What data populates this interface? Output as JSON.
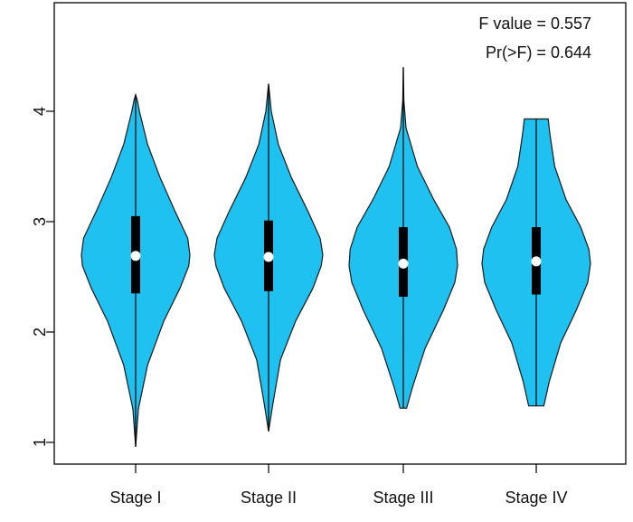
{
  "chart_data": {
    "type": "violin",
    "title": "",
    "xlabel": "",
    "ylabel": "",
    "ylim": [
      0.8,
      4.55
    ],
    "yticks": [
      1,
      2,
      3,
      4
    ],
    "categories": [
      "Stage I",
      "Stage II",
      "Stage III",
      "Stage IV"
    ],
    "annotations": [
      "F value = 0.557",
      "Pr(>F) = 0.644"
    ],
    "fill_color": "#1ec1ef",
    "grid": false,
    "violins": [
      {
        "category": "Stage I",
        "min": 0.96,
        "max": 4.15,
        "q1": 2.35,
        "median": 2.69,
        "q3": 3.05,
        "density_y": [
          0.96,
          1.3,
          1.7,
          2.1,
          2.4,
          2.6,
          2.7,
          2.85,
          3.1,
          3.4,
          3.7,
          4.0,
          4.1,
          4.15
        ],
        "density_w": [
          0.0,
          0.05,
          0.22,
          0.52,
          0.82,
          0.98,
          1.0,
          0.96,
          0.72,
          0.45,
          0.22,
          0.07,
          0.03,
          0.0
        ]
      },
      {
        "category": "Stage II",
        "min": 1.1,
        "max": 4.25,
        "q1": 2.37,
        "median": 2.68,
        "q3": 3.01,
        "density_y": [
          1.1,
          1.35,
          1.75,
          2.1,
          2.4,
          2.6,
          2.7,
          2.85,
          3.1,
          3.4,
          3.7,
          4.0,
          4.2,
          4.25
        ],
        "density_w": [
          0.0,
          0.08,
          0.22,
          0.5,
          0.82,
          0.97,
          1.0,
          0.95,
          0.72,
          0.42,
          0.18,
          0.05,
          0.01,
          0.0
        ]
      },
      {
        "category": "Stage III",
        "min": 1.31,
        "max": 4.4,
        "q1": 2.32,
        "median": 2.62,
        "q3": 2.95,
        "density_y": [
          1.31,
          1.5,
          1.85,
          2.2,
          2.45,
          2.6,
          2.75,
          2.95,
          3.2,
          3.5,
          3.85,
          4.1,
          4.4
        ],
        "density_w": [
          0.06,
          0.17,
          0.4,
          0.74,
          0.95,
          1.0,
          0.98,
          0.85,
          0.56,
          0.26,
          0.05,
          0.01,
          0.0
        ]
      },
      {
        "category": "Stage IV",
        "min": 1.33,
        "max": 3.93,
        "q1": 2.34,
        "median": 2.64,
        "q3": 2.95,
        "density_y": [
          1.33,
          1.55,
          1.9,
          2.2,
          2.45,
          2.62,
          2.75,
          2.95,
          3.2,
          3.5,
          3.8,
          3.93
        ],
        "density_w": [
          0.14,
          0.24,
          0.45,
          0.74,
          0.95,
          1.0,
          0.97,
          0.82,
          0.55,
          0.34,
          0.25,
          0.22
        ]
      }
    ]
  }
}
